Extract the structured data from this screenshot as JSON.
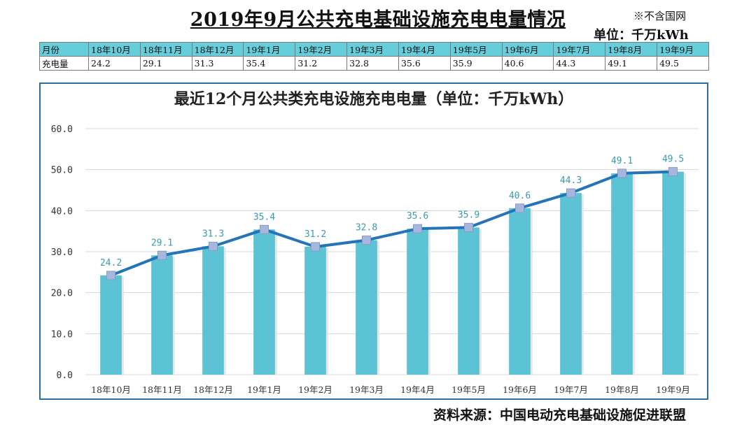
{
  "header": {
    "title": "2019年9月公共充电基础设施充电电量情况",
    "note": "※不含国网",
    "unit": "单位：千万kWh"
  },
  "table": {
    "row_labels": [
      "月份",
      "充电量"
    ],
    "months": [
      "18年10月",
      "18年11月",
      "18年12月",
      "19年1月",
      "19年2月",
      "19年3月",
      "19年4月",
      "19年5月",
      "19年6月",
      "19年7月",
      "19年8月",
      "19年9月"
    ],
    "values": [
      "24.2",
      "29.1",
      "31.3",
      "35.4",
      "31.2",
      "32.8",
      "35.6",
      "35.9",
      "40.6",
      "44.3",
      "49.1",
      "49.5"
    ]
  },
  "chart_data": {
    "type": "bar",
    "title": "最近12个月公共类充电设施充电电量（单位：千万kWh）",
    "categories": [
      "18年10月",
      "18年11月",
      "18年12月",
      "19年1月",
      "19年2月",
      "19年3月",
      "19年4月",
      "19年5月",
      "19年6月",
      "19年7月",
      "19年8月",
      "19年9月"
    ],
    "values": [
      24.2,
      29.1,
      31.3,
      35.4,
      31.2,
      32.8,
      35.6,
      35.9,
      40.6,
      44.3,
      49.1,
      49.5
    ],
    "overlay": "line",
    "ylim": [
      0,
      60
    ],
    "yticks": [
      "0.0",
      "10.0",
      "20.0",
      "30.0",
      "40.0",
      "50.0",
      "60.0"
    ],
    "data_labels": [
      "24.2",
      "29.1",
      "31.3",
      "35.4",
      "31.2",
      "32.8",
      "35.6",
      "35.9",
      "40.6",
      "44.3",
      "49.1",
      "49.5"
    ],
    "grid": true,
    "legend": "none",
    "colors": {
      "bar": "#5bc3d3",
      "line": "#2374b9",
      "marker": "#a7b6dc",
      "label": "#3c9ab0"
    }
  },
  "footer": {
    "source": "资料来源：中国电动充电基础设施促进联盟"
  }
}
